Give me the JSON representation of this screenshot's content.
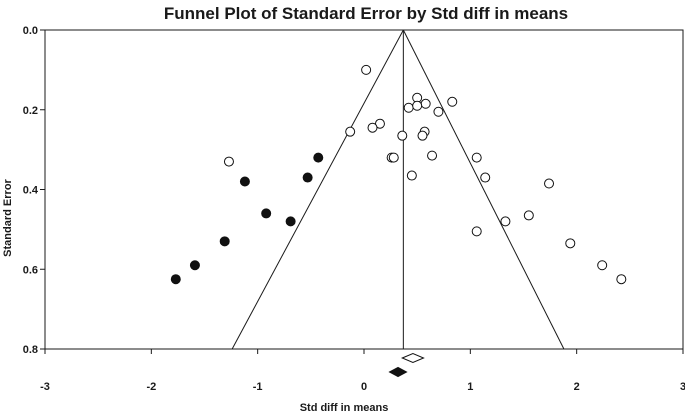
{
  "chart_data": {
    "type": "scatter",
    "title": "Funnel Plot of Standard Error by Std diff in means",
    "xlabel": "Std diff in means",
    "ylabel": "Standard Error",
    "xlim": [
      -3,
      3
    ],
    "ylim": [
      0.0,
      0.8
    ],
    "y_inverted": true,
    "xticks": [
      "-3",
      "-2",
      "-1",
      "0",
      "1",
      "2",
      "3"
    ],
    "xtick_values": [
      -3,
      -2,
      -1,
      0,
      1,
      2,
      3
    ],
    "yticks": [
      "0.0",
      "0.2",
      "0.4",
      "0.6",
      "0.8"
    ],
    "ytick_values": [
      0.0,
      0.2,
      0.4,
      0.6,
      0.8
    ],
    "grid": false,
    "funnel": {
      "center": 0.37,
      "apex_se": 0.0,
      "base_se": 0.8,
      "base_left": -1.24,
      "base_right": 1.88
    },
    "series": [
      {
        "marker": "open-circle",
        "points": [
          {
            "x": 0.02,
            "y": 0.1
          },
          {
            "x": 0.5,
            "y": 0.17
          },
          {
            "x": 0.83,
            "y": 0.18
          },
          {
            "x": 0.58,
            "y": 0.185
          },
          {
            "x": 0.42,
            "y": 0.195
          },
          {
            "x": 0.5,
            "y": 0.19
          },
          {
            "x": 0.7,
            "y": 0.205
          },
          {
            "x": 0.15,
            "y": 0.235
          },
          {
            "x": 0.08,
            "y": 0.245
          },
          {
            "x": -0.13,
            "y": 0.255
          },
          {
            "x": 0.57,
            "y": 0.255
          },
          {
            "x": 0.36,
            "y": 0.265
          },
          {
            "x": 0.55,
            "y": 0.265
          },
          {
            "x": 0.26,
            "y": 0.32
          },
          {
            "x": 0.28,
            "y": 0.32
          },
          {
            "x": 0.64,
            "y": 0.315
          },
          {
            "x": 1.06,
            "y": 0.32
          },
          {
            "x": 1.14,
            "y": 0.37
          },
          {
            "x": 0.45,
            "y": 0.365
          },
          {
            "x": -1.27,
            "y": 0.33
          },
          {
            "x": 1.74,
            "y": 0.385
          },
          {
            "x": 1.55,
            "y": 0.465
          },
          {
            "x": 1.33,
            "y": 0.48
          },
          {
            "x": 1.06,
            "y": 0.505
          },
          {
            "x": 1.94,
            "y": 0.535
          },
          {
            "x": 2.24,
            "y": 0.59
          },
          {
            "x": 2.42,
            "y": 0.625
          }
        ]
      },
      {
        "marker": "filled-circle",
        "points": [
          {
            "x": -0.43,
            "y": 0.32
          },
          {
            "x": -0.53,
            "y": 0.37
          },
          {
            "x": -1.12,
            "y": 0.38
          },
          {
            "x": -0.92,
            "y": 0.46
          },
          {
            "x": -0.69,
            "y": 0.48
          },
          {
            "x": -1.31,
            "y": 0.53
          },
          {
            "x": -1.59,
            "y": 0.59
          },
          {
            "x": -1.77,
            "y": 0.625
          }
        ]
      }
    ],
    "summary_diamonds": [
      {
        "marker": "open-diamond",
        "center": 0.46,
        "half_width": 0.1
      },
      {
        "marker": "filled-diamond",
        "center": 0.32,
        "half_width": 0.08
      }
    ]
  }
}
